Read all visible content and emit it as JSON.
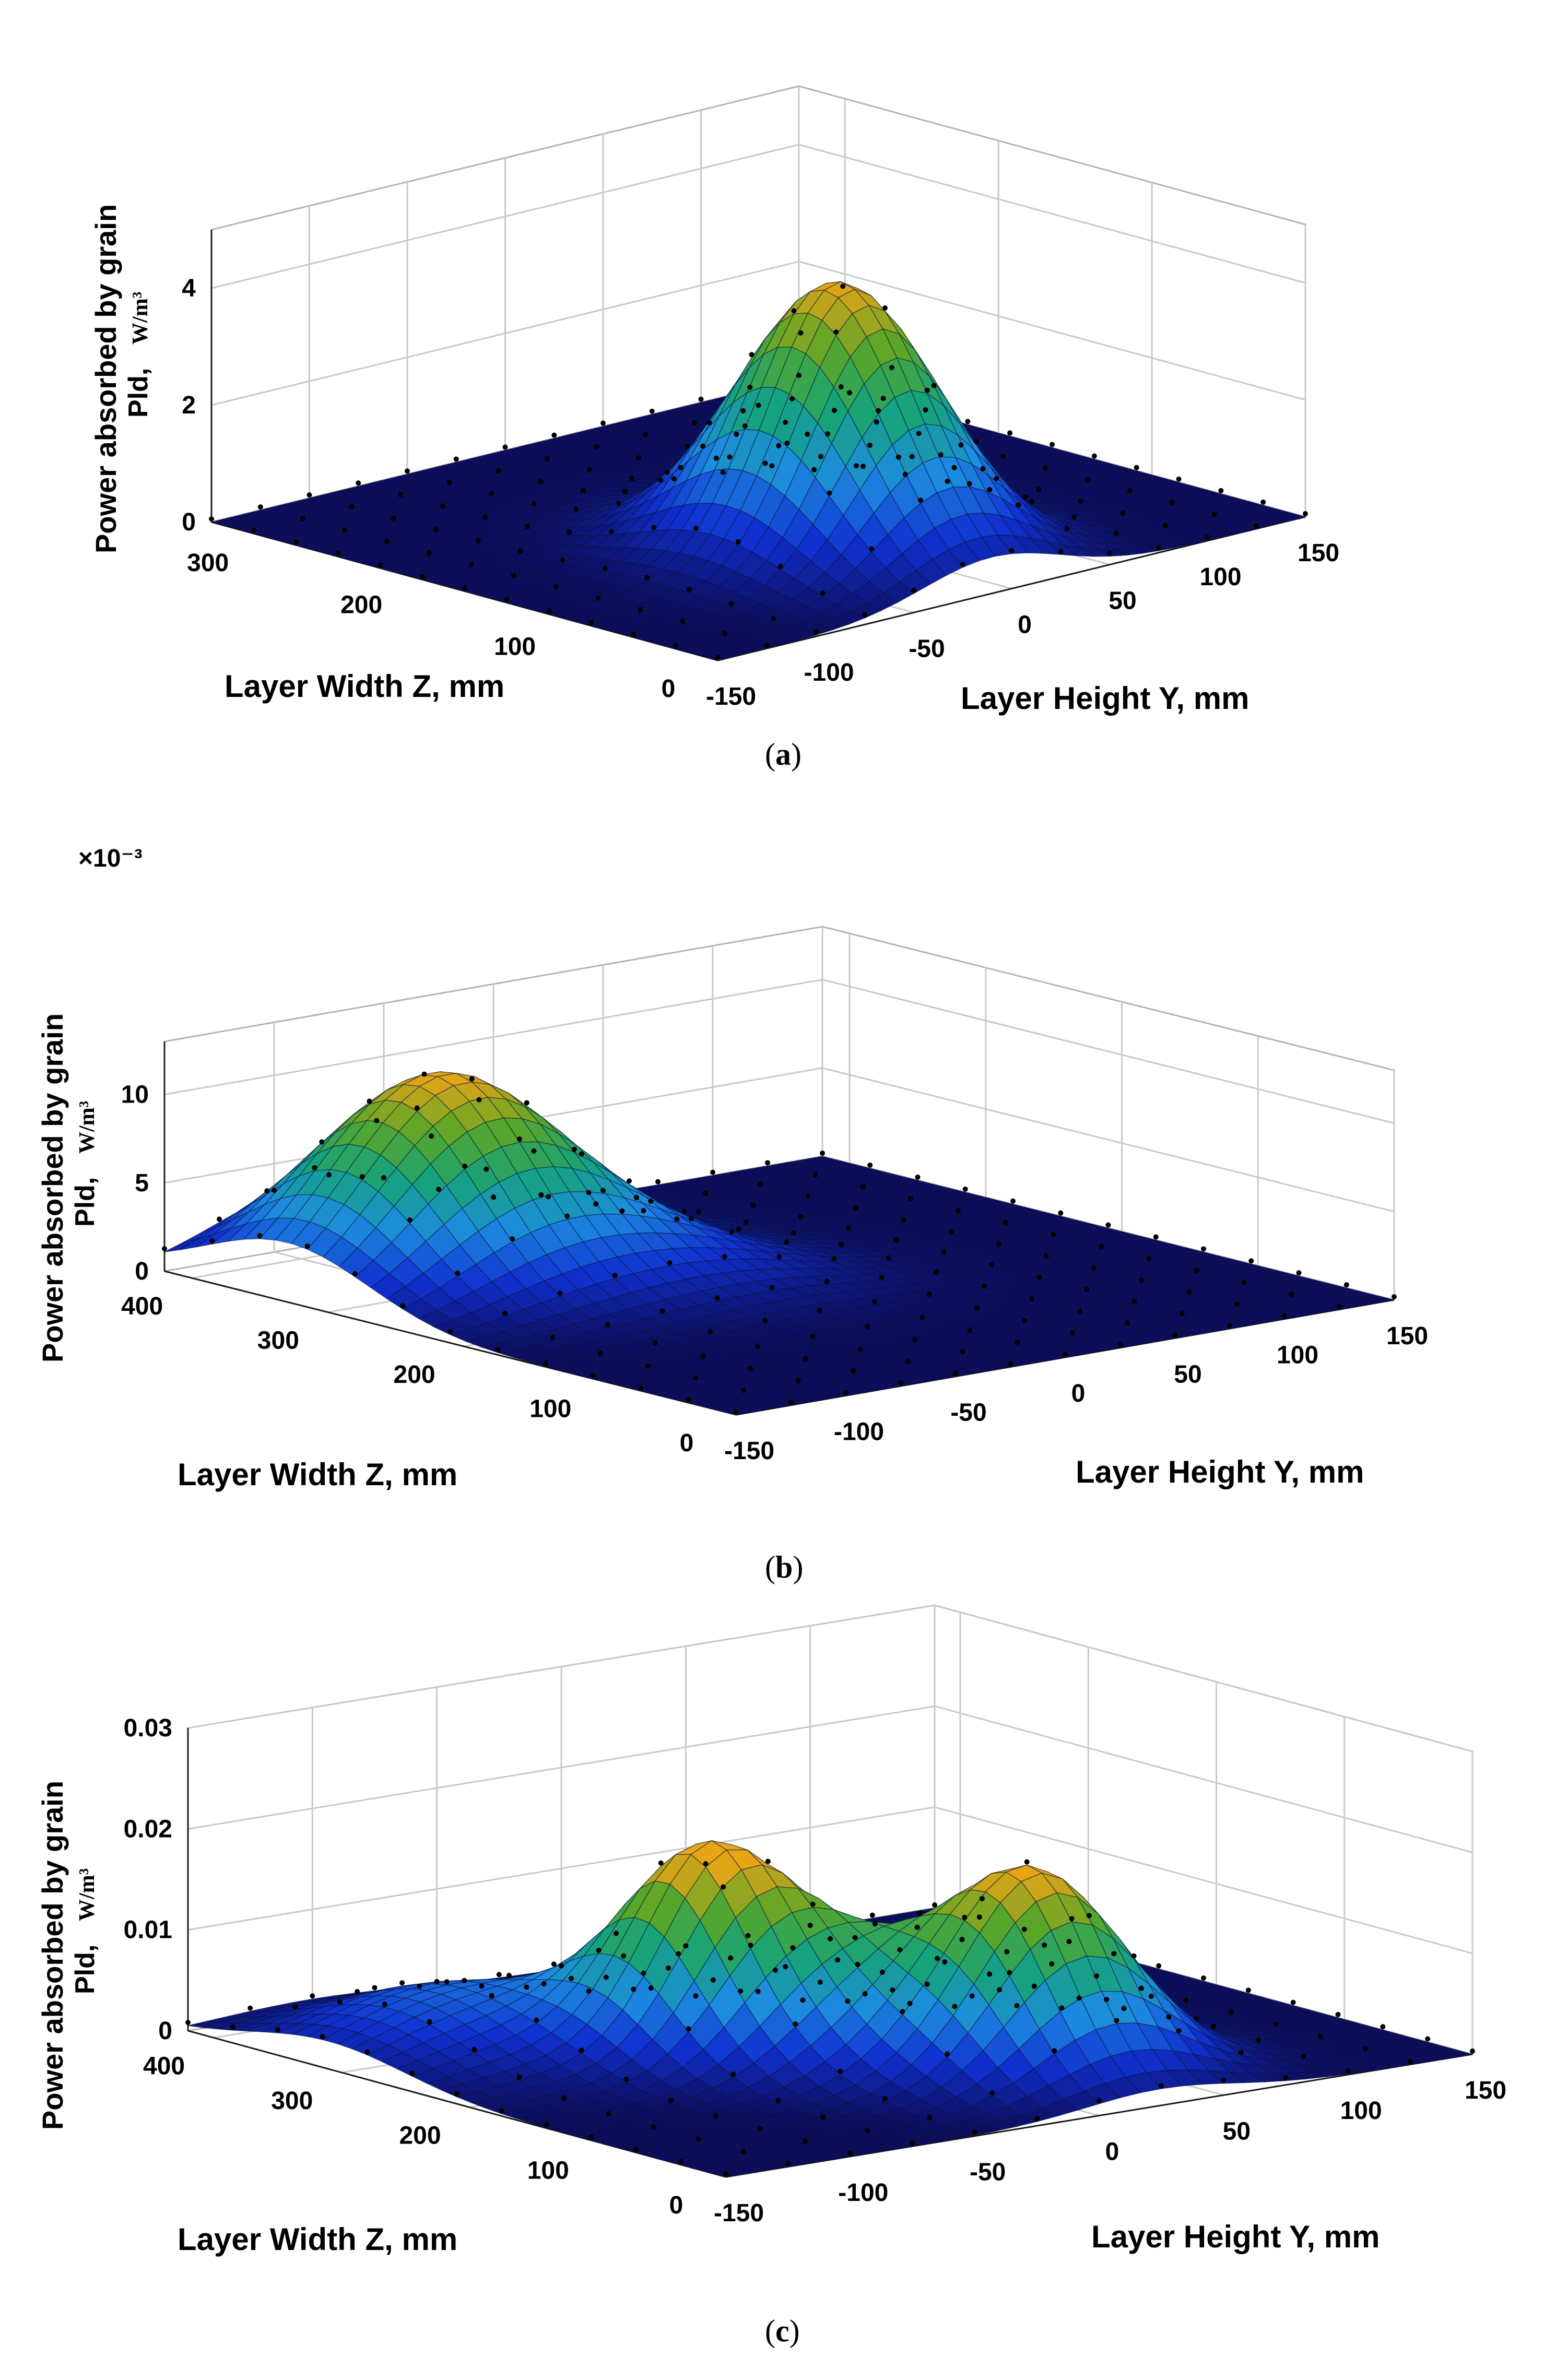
{
  "figure": {
    "panels": [
      {
        "caption_letter": "a",
        "z_axis_label": "Layer Width Z, mm",
        "y_axis_label": "Layer Height Y, mm",
        "value_axis_label_line1": "Power absorbed by grain",
        "value_axis_label_line2": "Pld,",
        "value_axis_units": "W/m³",
        "exponent_label": "",
        "z_ticks": [
          "0",
          "100",
          "200",
          "300"
        ],
        "y_ticks": [
          "-150",
          "-100",
          "-50",
          "0",
          "50",
          "100",
          "150"
        ],
        "value_ticks": [
          "0",
          "2",
          "4"
        ]
      },
      {
        "caption_letter": "b",
        "z_axis_label": "Layer Width Z, mm",
        "y_axis_label": "Layer Height Y, mm",
        "value_axis_label_line1": "Power absorbed by grain",
        "value_axis_label_line2": "Pld,",
        "value_axis_units": "W/m³",
        "exponent_label": "×10⁻³",
        "z_ticks": [
          "0",
          "100",
          "200",
          "300",
          "400"
        ],
        "y_ticks": [
          "-150",
          "-100",
          "-50",
          "0",
          "50",
          "100",
          "150"
        ],
        "value_ticks": [
          "0",
          "5",
          "10"
        ]
      },
      {
        "caption_letter": "c",
        "z_axis_label": "Layer Width Z, mm",
        "y_axis_label": "Layer Height Y, mm",
        "value_axis_label_line1": "Power absorbed by grain",
        "value_axis_label_line2": "Pld,",
        "value_axis_units": "W/m³",
        "exponent_label": "",
        "z_ticks": [
          "0",
          "100",
          "200",
          "300",
          "400"
        ],
        "y_ticks": [
          "-150",
          "-100",
          "-50",
          "0",
          "50",
          "100",
          "150"
        ],
        "value_ticks": [
          "0",
          "0.01",
          "0.02",
          "0.03"
        ]
      }
    ]
  },
  "chart_data": [
    {
      "type": "surface",
      "title": "(a)",
      "xlabel": "Layer Height Y, mm",
      "ylabel": "Layer Width Z, mm",
      "zlabel": "Power absorbed by grain Pld, W/m³",
      "xlim": [
        -150,
        150
      ],
      "ylim": [
        0,
        330
      ],
      "zlim": [
        0,
        5
      ],
      "colormap": [
        "#0d0d5c",
        "#1030d0",
        "#1d8ce0",
        "#16a37a",
        "#58a628",
        "#e7a516"
      ],
      "peaks": [
        {
          "y": -10,
          "z": 100,
          "sigma_y": 35,
          "sigma_z": 50,
          "value": 4.6
        }
      ]
    },
    {
      "type": "surface",
      "title": "(b)",
      "xlabel": "Layer Height Y, mm",
      "ylabel": "Layer Width Z, mm",
      "zlabel": "Power absorbed by grain Pld, W/m³",
      "multiplier": "×10⁻³",
      "xlim": [
        -150,
        150
      ],
      "ylim": [
        0,
        420
      ],
      "zlim": [
        0,
        13
      ],
      "colormap": [
        "#0d0d5c",
        "#1030d0",
        "#1d8ce0",
        "#16a37a",
        "#58a628",
        "#e7a516"
      ],
      "peaks": [
        {
          "y": -80,
          "z": 330,
          "sigma_y": 45,
          "sigma_z": 60,
          "value": 11.3
        },
        {
          "y": -20,
          "z": 240,
          "sigma_y": 40,
          "sigma_z": 55,
          "value": 1.5
        }
      ]
    },
    {
      "type": "surface",
      "title": "(c)",
      "xlabel": "Layer Height Y, mm",
      "ylabel": "Layer Width Z, mm",
      "zlabel": "Power absorbed by grain Pld, W/m³",
      "xlim": [
        -150,
        150
      ],
      "ylim": [
        0,
        420
      ],
      "zlim": [
        0,
        0.03
      ],
      "colormap": [
        "#0d0d5c",
        "#1030d0",
        "#1d8ce0",
        "#16a37a",
        "#58a628",
        "#e7a516"
      ],
      "peaks": [
        {
          "y": 25,
          "z": 100,
          "sigma_y": 30,
          "sigma_z": 45,
          "value": 0.0195
        },
        {
          "y": -45,
          "z": 230,
          "sigma_y": 25,
          "sigma_z": 40,
          "value": 0.016
        },
        {
          "y": -20,
          "z": 180,
          "sigma_y": 30,
          "sigma_z": 45,
          "value": 0.01
        },
        {
          "y": -100,
          "z": 310,
          "sigma_y": 40,
          "sigma_z": 60,
          "value": 0.006
        }
      ]
    }
  ]
}
